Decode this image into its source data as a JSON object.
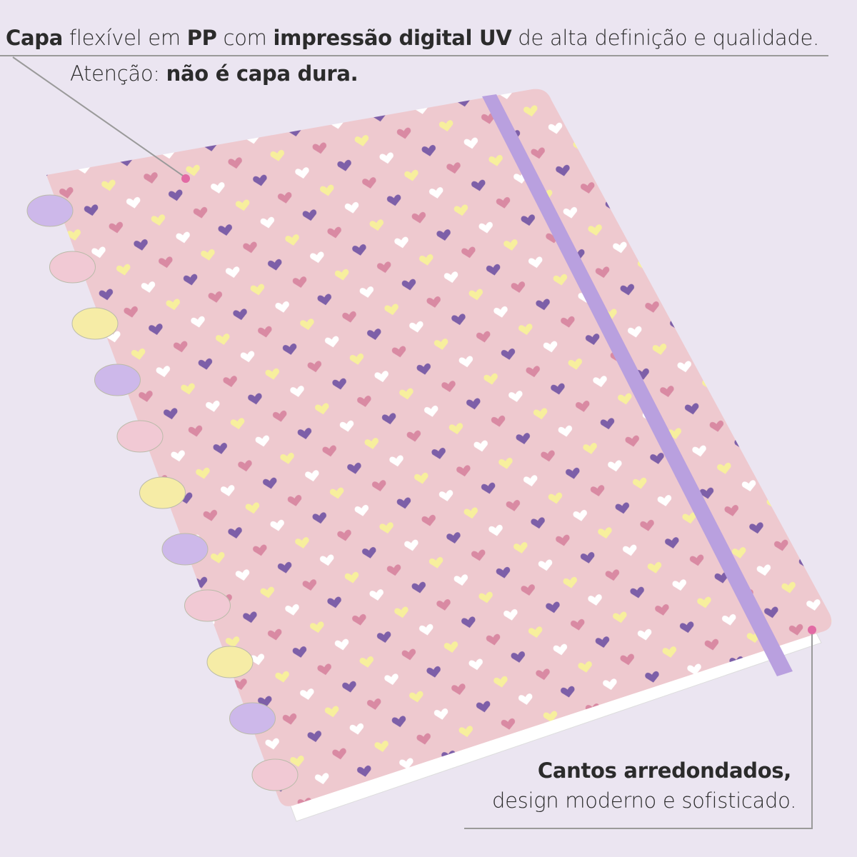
{
  "callouts": [
    {
      "lines": [
        [
          {
            "text": "Capa",
            "bold": true
          },
          {
            "text": " flexível em ",
            "bold": false
          },
          {
            "text": "PP",
            "bold": true
          },
          {
            "text": " com ",
            "bold": false
          },
          {
            "text": "impressão digital UV",
            "bold": true
          },
          {
            "text": " de alta definição e qualidade.",
            "bold": false
          }
        ],
        [
          {
            "text": "Atenção: ",
            "bold": false
          },
          {
            "text": "não é capa dura.",
            "bold": true
          }
        ]
      ]
    },
    {
      "lines": [
        [
          {
            "text": "Cantos arredondados,",
            "bold": true
          }
        ],
        [
          {
            "text": "design moderno e sofisticado.",
            "bold": false
          }
        ]
      ]
    }
  ]
}
